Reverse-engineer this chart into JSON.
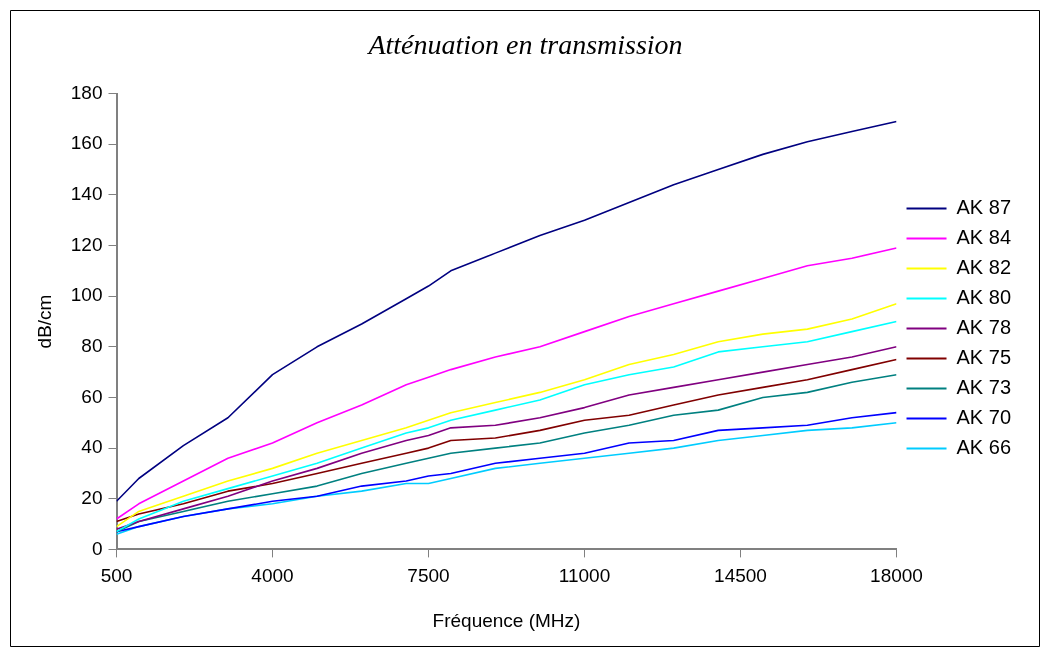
{
  "chart_data": {
    "type": "line",
    "title": "Atténuation en transmission",
    "xlabel": "Fréquence (MHz)",
    "ylabel": "dB/cm",
    "x": [
      500,
      1000,
      2000,
      3000,
      4000,
      5000,
      6000,
      7000,
      7500,
      8000,
      9000,
      10000,
      11000,
      12000,
      13000,
      14000,
      15000,
      16000,
      17000,
      18000
    ],
    "xlim": [
      500,
      18000
    ],
    "xticks": [
      500,
      4000,
      7500,
      11000,
      14500,
      18000
    ],
    "ylim": [
      0,
      180
    ],
    "yticks": [
      0,
      20,
      40,
      60,
      80,
      100,
      120,
      140,
      160,
      180
    ],
    "grid": false,
    "legend": "right",
    "marker": "none",
    "line_style": "solid",
    "series": [
      {
        "name": "AK 87",
        "color": "#000080",
        "values": [
          19,
          28,
          41,
          52,
          69,
          80,
          89,
          99,
          104,
          110,
          117,
          124,
          130,
          137,
          144,
          150,
          156,
          161,
          165,
          169
        ]
      },
      {
        "name": "AK 84",
        "color": "#ff00ff",
        "values": [
          12,
          18,
          27,
          36,
          42,
          50,
          57,
          65,
          68,
          71,
          76,
          80,
          86,
          92,
          97,
          102,
          107,
          112,
          115,
          119
        ]
      },
      {
        "name": "AK 82",
        "color": "#ffff00",
        "values": [
          9,
          15,
          21,
          27,
          32,
          38,
          43,
          48,
          51,
          54,
          58,
          62,
          67,
          73,
          77,
          82,
          85,
          87,
          91,
          97
        ]
      },
      {
        "name": "AK 80",
        "color": "#00ffff",
        "values": [
          7,
          12,
          19,
          24,
          29,
          34,
          40,
          46,
          48,
          51,
          55,
          59,
          65,
          69,
          72,
          78,
          80,
          82,
          86,
          90
        ]
      },
      {
        "name": "AK 78",
        "color": "#800080",
        "values": [
          8,
          11,
          16,
          21,
          27,
          32,
          38,
          43,
          45,
          48,
          49,
          52,
          56,
          61,
          64,
          67,
          70,
          73,
          76,
          80
        ]
      },
      {
        "name": "AK 75",
        "color": "#800000",
        "values": [
          11,
          14,
          18,
          23,
          26,
          30,
          34,
          38,
          40,
          43,
          44,
          47,
          51,
          53,
          57,
          61,
          64,
          67,
          71,
          75
        ]
      },
      {
        "name": "AK 73",
        "color": "#008080",
        "values": [
          7,
          11,
          15,
          19,
          22,
          25,
          30,
          34,
          36,
          38,
          40,
          42,
          46,
          49,
          53,
          55,
          60,
          62,
          66,
          69
        ]
      },
      {
        "name": "AK 70",
        "color": "#0000ff",
        "values": [
          7,
          9,
          13,
          16,
          19,
          21,
          25,
          27,
          29,
          30,
          34,
          36,
          38,
          42,
          43,
          47,
          48,
          49,
          52,
          54
        ]
      },
      {
        "name": "AK 66",
        "color": "#00ccff",
        "values": [
          6,
          9,
          13,
          16,
          18,
          21,
          23,
          26,
          26,
          28,
          32,
          34,
          36,
          38,
          40,
          43,
          45,
          47,
          48,
          50
        ]
      }
    ]
  }
}
